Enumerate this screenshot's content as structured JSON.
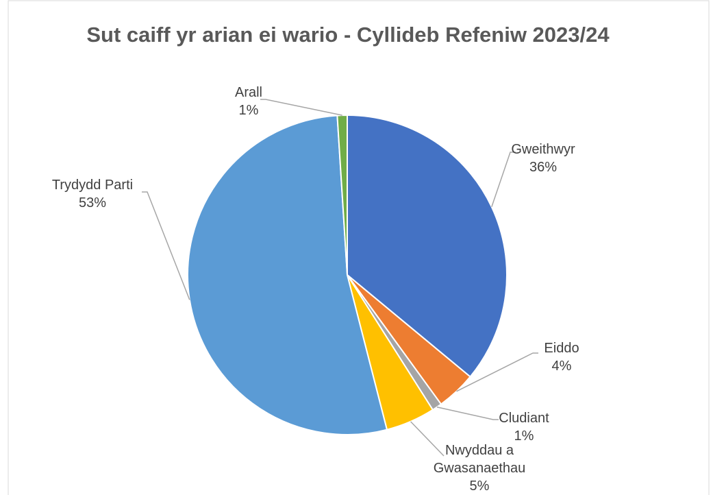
{
  "chart_data": {
    "type": "pie",
    "title": "Sut caiff yr arian ei wario - Cyllideb Refeniw 2023/24",
    "categories": [
      "Gweithwyr",
      "Eiddo",
      "Cludiant",
      "Nwyddau a Gwasanaethau",
      "Trydydd Parti",
      "Arall"
    ],
    "values": [
      36,
      4,
      1,
      5,
      53,
      1
    ],
    "value_labels": [
      "36%",
      "4%",
      "1%",
      "5%",
      "53%",
      "1%"
    ],
    "colors": [
      "#4472c4",
      "#ed7d31",
      "#a5a5a5",
      "#ffc000",
      "#5b9bd5",
      "#70ad47"
    ]
  }
}
